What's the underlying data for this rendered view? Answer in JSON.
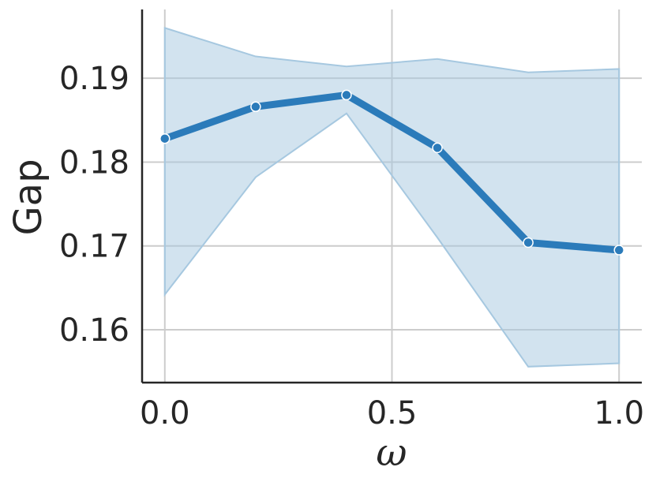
{
  "chart_data": {
    "type": "line",
    "xlabel": "ω",
    "ylabel": "Gap",
    "xlim": [
      -0.05,
      1.05
    ],
    "ylim": [
      0.1537,
      0.1982
    ],
    "xticks": [
      0.0,
      0.5,
      1.0
    ],
    "xtick_labels": [
      "0.0",
      "0.5",
      "1.0"
    ],
    "yticks": [
      0.16,
      0.17,
      0.18,
      0.19
    ],
    "ytick_labels": [
      "0.16",
      "0.17",
      "0.18",
      "0.19"
    ],
    "grid": true,
    "series": [
      {
        "x": [
          0.0,
          0.2,
          0.4,
          0.6,
          0.8,
          1.0
        ],
        "y": [
          0.1828,
          0.1866,
          0.188,
          0.1817,
          0.1704,
          0.1695
        ],
        "lower": [
          0.1642,
          0.1782,
          0.1858,
          0.171,
          0.1556,
          0.156
        ],
        "upper": [
          0.196,
          0.1926,
          0.1914,
          0.1923,
          0.1907,
          0.1911
        ],
        "color": "#2b7bba",
        "band_color": "#a6c8e0"
      }
    ]
  }
}
